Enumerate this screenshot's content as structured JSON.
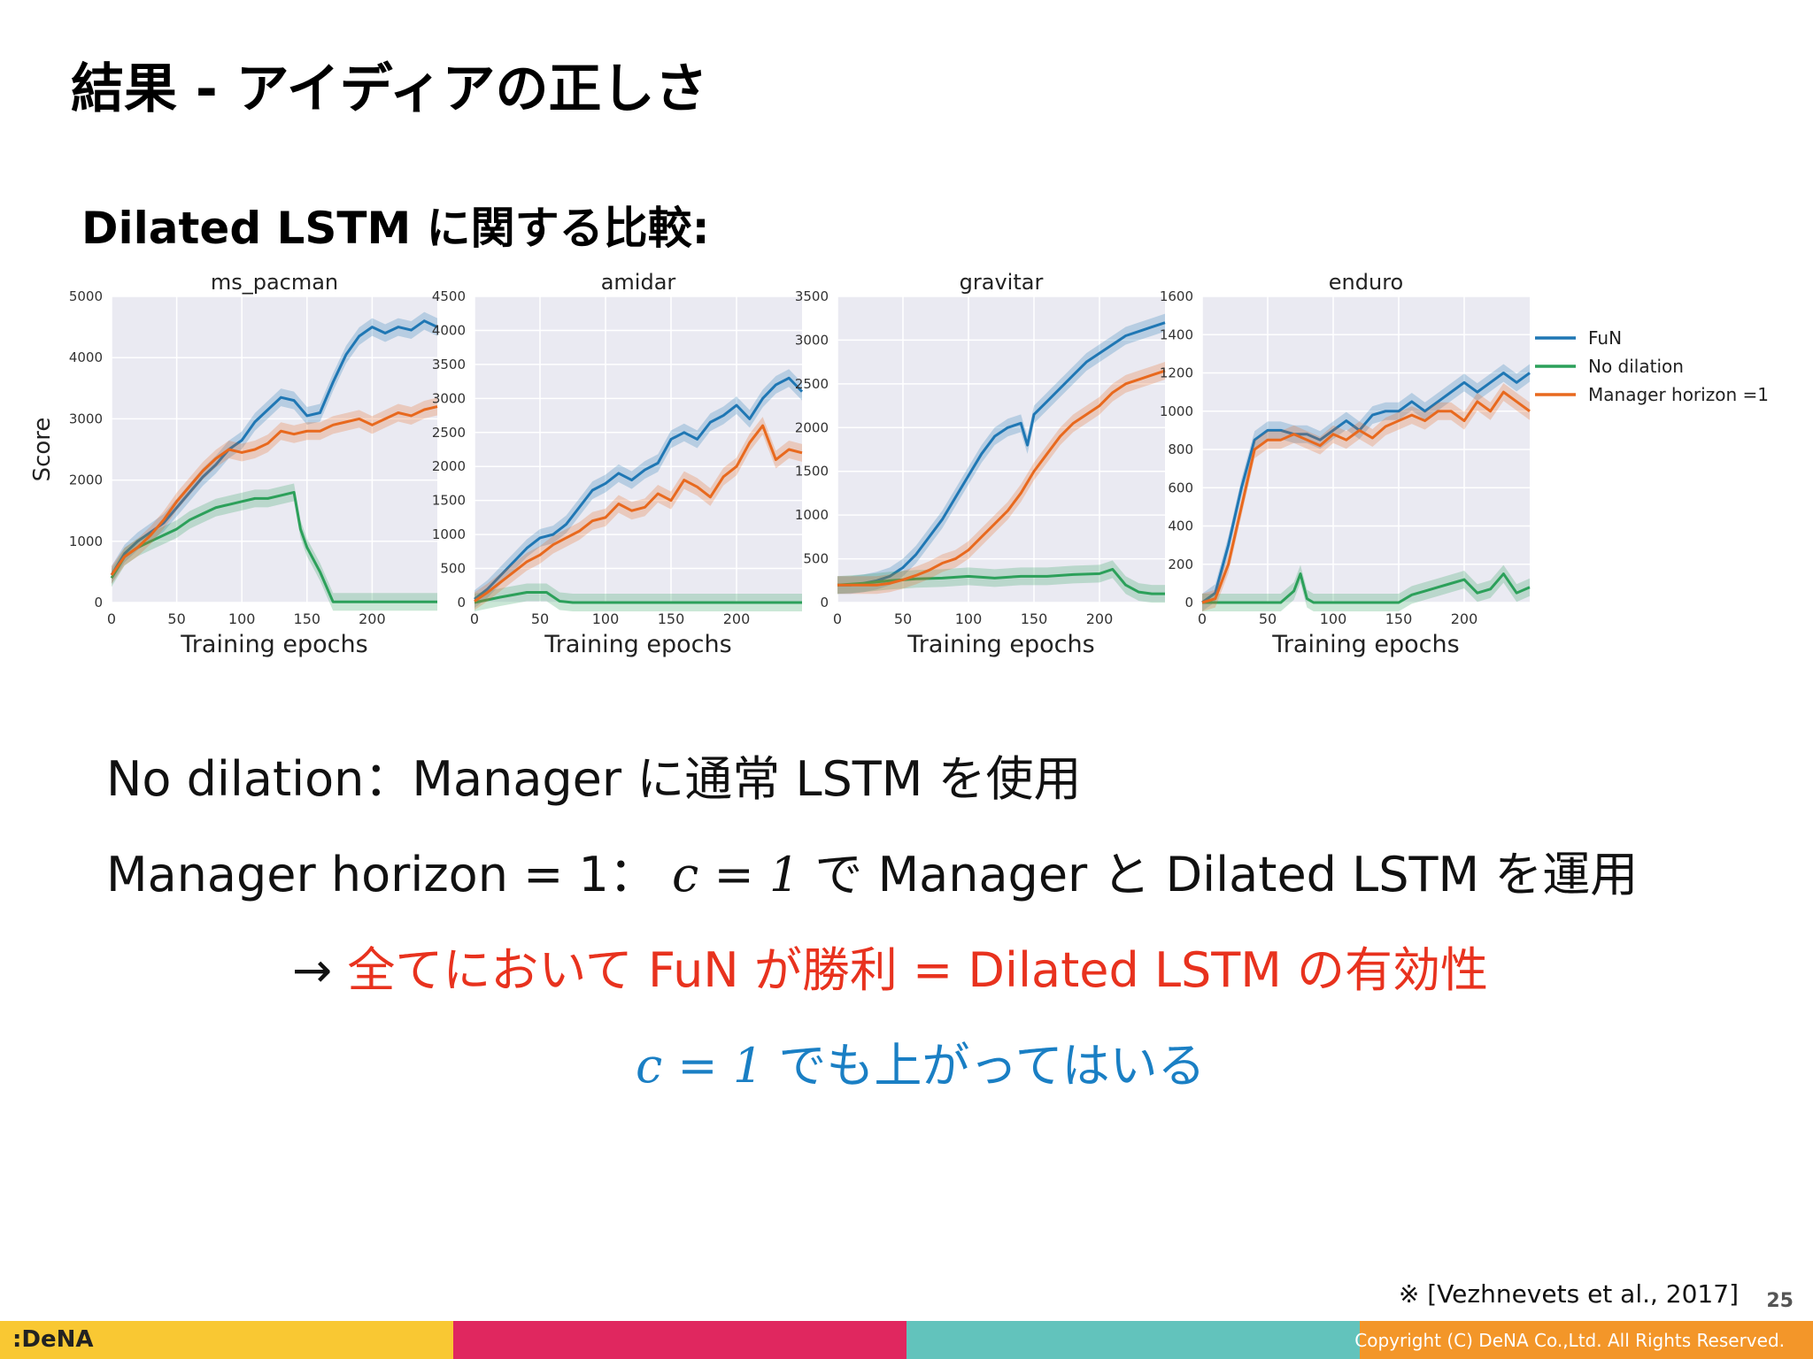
{
  "slide": {
    "title": "結果 - アイディアの正しさ",
    "subtitle": "Dilated LSTM に関する比較:",
    "lines": {
      "l1": "No dilation：Manager に通常 LSTM を使用",
      "l2_pre": "Manager horizon = 1：",
      "l2_math": "c = 1",
      "l2_post": " で Manager と Dilated LSTM を運用",
      "l3_arrow": "→ ",
      "l3_text": "全てにおいて FuN が勝利 = Dilated LSTM の有効性",
      "l4_math": "c = 1",
      "l4_text": " でも上がってはいる"
    },
    "citation": "※ [Vezhnevets et al., 2017]",
    "page_number": "25",
    "copyright": "Copyright (C) DeNA Co.,Ltd. All Rights Reserved.",
    "logo": ":DeNA",
    "footer_colors": [
      "#f9c833",
      "#e0275f",
      "#62c3bc",
      "#f39629"
    ]
  },
  "chart_data": [
    {
      "type": "line",
      "title": "ms_pacman",
      "xlabel": "Training epochs",
      "ylabel": "Score",
      "xlim": [
        0,
        250
      ],
      "ylim": [
        0,
        5000
      ],
      "xticks": [
        0,
        50,
        100,
        150,
        200
      ],
      "yticks": [
        0,
        1000,
        2000,
        3000,
        4000,
        5000
      ],
      "series": [
        {
          "name": "FuN",
          "color": "#1f77b4",
          "x": [
            0,
            10,
            20,
            30,
            40,
            50,
            60,
            70,
            80,
            90,
            100,
            110,
            120,
            130,
            140,
            150,
            160,
            170,
            180,
            190,
            200,
            210,
            220,
            230,
            240,
            250
          ],
          "values": [
            450,
            800,
            1000,
            1150,
            1300,
            1550,
            1800,
            2050,
            2250,
            2500,
            2650,
            2950,
            3150,
            3350,
            3300,
            3050,
            3100,
            3600,
            4050,
            4350,
            4500,
            4400,
            4500,
            4450,
            4600,
            4500
          ]
        },
        {
          "name": "No dilation",
          "color": "#2ca05a",
          "x": [
            0,
            10,
            20,
            30,
            40,
            50,
            60,
            70,
            80,
            90,
            100,
            110,
            120,
            130,
            140,
            145,
            150,
            160,
            170,
            180,
            190,
            200,
            210,
            220,
            230,
            240,
            250
          ],
          "values": [
            400,
            750,
            900,
            1000,
            1100,
            1200,
            1350,
            1450,
            1550,
            1600,
            1650,
            1700,
            1700,
            1750,
            1800,
            1200,
            900,
            500,
            10,
            10,
            10,
            10,
            10,
            10,
            10,
            10,
            10
          ]
        },
        {
          "name": "Manager horizon =1",
          "color": "#e8691e",
          "x": [
            0,
            10,
            20,
            30,
            40,
            50,
            60,
            70,
            80,
            90,
            100,
            110,
            120,
            130,
            140,
            150,
            160,
            170,
            180,
            190,
            200,
            210,
            220,
            230,
            240,
            250
          ],
          "values": [
            450,
            750,
            900,
            1100,
            1350,
            1650,
            1900,
            2150,
            2350,
            2500,
            2450,
            2500,
            2600,
            2800,
            2750,
            2800,
            2800,
            2900,
            2950,
            3000,
            2900,
            3000,
            3100,
            3050,
            3150,
            3200
          ]
        }
      ]
    },
    {
      "type": "line",
      "title": "amidar",
      "xlabel": "Training epochs",
      "ylabel": "",
      "xlim": [
        0,
        250
      ],
      "ylim": [
        0,
        4500
      ],
      "xticks": [
        0,
        50,
        100,
        150,
        200
      ],
      "yticks": [
        0,
        500,
        1000,
        1500,
        2000,
        2500,
        3000,
        3500,
        4000,
        4500
      ],
      "series": [
        {
          "name": "FuN",
          "color": "#1f77b4",
          "x": [
            0,
            10,
            20,
            30,
            40,
            50,
            60,
            70,
            80,
            90,
            100,
            110,
            120,
            130,
            140,
            150,
            160,
            170,
            180,
            190,
            200,
            210,
            220,
            230,
            240,
            250
          ],
          "values": [
            50,
            200,
            400,
            600,
            800,
            950,
            1000,
            1150,
            1400,
            1650,
            1750,
            1900,
            1800,
            1950,
            2050,
            2400,
            2500,
            2400,
            2650,
            2750,
            2900,
            2700,
            3000,
            3200,
            3300,
            3100
          ]
        },
        {
          "name": "No dilation",
          "color": "#2ca05a",
          "x": [
            0,
            20,
            40,
            55,
            65,
            75,
            100,
            150,
            200,
            250
          ],
          "values": [
            0,
            80,
            150,
            150,
            20,
            0,
            0,
            0,
            0,
            0
          ]
        },
        {
          "name": "Manager horizon =1",
          "color": "#e8691e",
          "x": [
            0,
            10,
            20,
            30,
            40,
            50,
            60,
            70,
            80,
            90,
            100,
            110,
            120,
            130,
            140,
            150,
            160,
            170,
            180,
            190,
            200,
            210,
            220,
            230,
            240,
            250
          ],
          "values": [
            20,
            150,
            300,
            450,
            600,
            700,
            850,
            950,
            1050,
            1200,
            1250,
            1450,
            1350,
            1400,
            1600,
            1500,
            1800,
            1700,
            1550,
            1850,
            2000,
            2350,
            2600,
            2100,
            2250,
            2200
          ]
        }
      ]
    },
    {
      "type": "line",
      "title": "gravitar",
      "xlabel": "Training epochs",
      "ylabel": "",
      "xlim": [
        0,
        250
      ],
      "ylim": [
        0,
        3500
      ],
      "xticks": [
        0,
        50,
        100,
        150,
        200
      ],
      "yticks": [
        0,
        500,
        1000,
        1500,
        2000,
        2500,
        3000,
        3500
      ],
      "series": [
        {
          "name": "FuN",
          "color": "#1f77b4",
          "x": [
            0,
            10,
            20,
            30,
            40,
            50,
            60,
            70,
            80,
            90,
            100,
            110,
            120,
            130,
            140,
            145,
            150,
            160,
            170,
            180,
            190,
            200,
            210,
            220,
            230,
            240,
            250
          ],
          "values": [
            200,
            200,
            220,
            250,
            300,
            400,
            550,
            750,
            950,
            1200,
            1450,
            1700,
            1900,
            2000,
            2050,
            1800,
            2150,
            2300,
            2450,
            2600,
            2750,
            2850,
            2950,
            3050,
            3100,
            3150,
            3200
          ]
        },
        {
          "name": "No dilation",
          "color": "#2ca05a",
          "x": [
            0,
            20,
            40,
            60,
            80,
            100,
            120,
            140,
            160,
            180,
            200,
            210,
            220,
            230,
            240,
            250
          ],
          "values": [
            200,
            220,
            250,
            270,
            280,
            300,
            280,
            300,
            300,
            320,
            330,
            380,
            200,
            120,
            100,
            100
          ]
        },
        {
          "name": "Manager horizon =1",
          "color": "#e8691e",
          "x": [
            0,
            10,
            20,
            30,
            40,
            50,
            60,
            70,
            80,
            90,
            100,
            110,
            120,
            130,
            140,
            150,
            160,
            170,
            180,
            190,
            200,
            210,
            220,
            230,
            240,
            250
          ],
          "values": [
            200,
            200,
            200,
            200,
            220,
            260,
            310,
            370,
            450,
            500,
            600,
            750,
            900,
            1050,
            1250,
            1500,
            1700,
            1900,
            2050,
            2150,
            2250,
            2400,
            2500,
            2550,
            2600,
            2650
          ]
        }
      ]
    },
    {
      "type": "line",
      "title": "enduro",
      "xlabel": "Training epochs",
      "ylabel": "",
      "xlim": [
        0,
        250
      ],
      "ylim": [
        0,
        1600
      ],
      "xticks": [
        0,
        50,
        100,
        150,
        200
      ],
      "yticks": [
        0,
        200,
        400,
        600,
        800,
        1000,
        1200,
        1400,
        1600
      ],
      "series": [
        {
          "name": "FuN",
          "color": "#1f77b4",
          "x": [
            0,
            10,
            20,
            30,
            40,
            50,
            60,
            70,
            80,
            90,
            100,
            110,
            120,
            130,
            140,
            150,
            160,
            170,
            180,
            190,
            200,
            210,
            220,
            230,
            240,
            250
          ],
          "values": [
            0,
            50,
            300,
            600,
            850,
            900,
            900,
            880,
            880,
            850,
            900,
            950,
            900,
            980,
            1000,
            1000,
            1050,
            1000,
            1050,
            1100,
            1150,
            1100,
            1150,
            1200,
            1150,
            1200
          ]
        },
        {
          "name": "No dilation",
          "color": "#2ca05a",
          "x": [
            0,
            60,
            65,
            70,
            75,
            80,
            85,
            90,
            140,
            150,
            160,
            170,
            180,
            190,
            200,
            210,
            220,
            230,
            240,
            250
          ],
          "values": [
            0,
            0,
            30,
            60,
            150,
            20,
            0,
            0,
            0,
            0,
            40,
            60,
            80,
            100,
            120,
            50,
            70,
            150,
            50,
            80
          ]
        },
        {
          "name": "Manager horizon =1",
          "color": "#e8691e",
          "x": [
            0,
            10,
            20,
            30,
            40,
            50,
            60,
            70,
            80,
            90,
            100,
            110,
            120,
            130,
            140,
            150,
            160,
            170,
            180,
            190,
            200,
            210,
            220,
            230,
            240,
            250
          ],
          "values": [
            0,
            20,
            200,
            500,
            800,
            850,
            850,
            880,
            850,
            820,
            880,
            850,
            900,
            860,
            920,
            950,
            980,
            950,
            1000,
            1000,
            950,
            1050,
            1000,
            1100,
            1050,
            1000
          ]
        }
      ]
    }
  ]
}
